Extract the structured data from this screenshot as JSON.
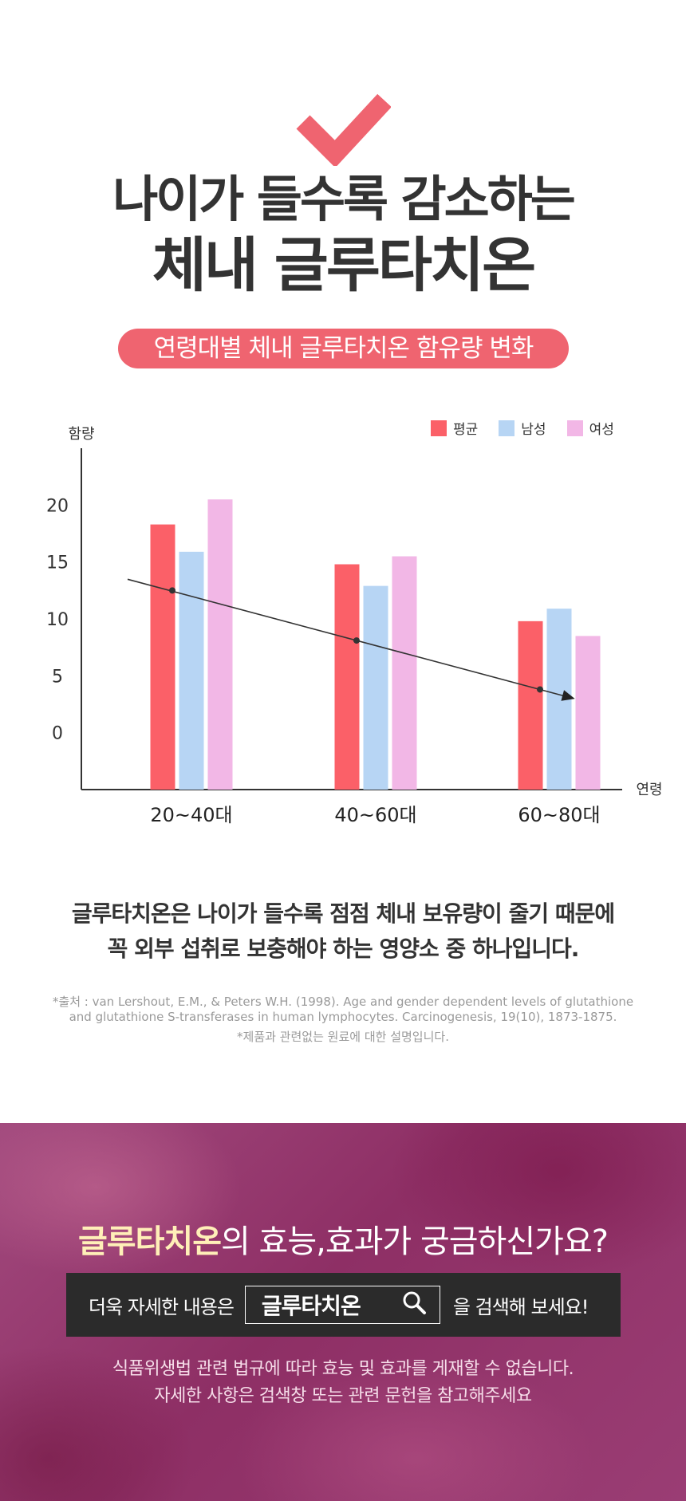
{
  "headline": {
    "line1": "나이가 들수록 감소하는",
    "line2": "체내 글루타치온"
  },
  "pill_label": "연령대별 체내 글루타치온 함유량 변화",
  "colors": {
    "accent": "#ef6470",
    "average": "#fb6068",
    "male": "#b7d5f4",
    "female": "#f2b7e6",
    "banner": "#8e2f65"
  },
  "icons": {
    "check": "checkmark-icon",
    "search": "search-icon"
  },
  "chart_data": {
    "type": "bar",
    "title": "",
    "xlabel": "연령",
    "ylabel": "함량",
    "categories": [
      "20~40대",
      "40~60대",
      "60~80대"
    ],
    "y_ticks": [
      0,
      5,
      10,
      15,
      20
    ],
    "ylim": [
      -5,
      25
    ],
    "grid": false,
    "legend_position": "top-right",
    "series": [
      {
        "name": "평균",
        "color": "#fb6068",
        "values": [
          18.3,
          14.8,
          9.8
        ]
      },
      {
        "name": "남성",
        "color": "#b7d5f4",
        "values": [
          15.9,
          12.9,
          10.9
        ]
      },
      {
        "name": "여성",
        "color": "#f2b7e6",
        "values": [
          20.5,
          15.5,
          8.5
        ]
      }
    ],
    "trend": {
      "points": [
        12.5,
        8.1,
        3.8
      ],
      "arrow": true
    }
  },
  "summary": {
    "line1": "글루타치온은 나이가 들수록 점점 체내 보유량이 줄기 때문에",
    "line2": "꼭 외부 섭취로 보충해야 하는 영양소 중 하나입니다."
  },
  "source": {
    "line1": "*출처 : van Lershout, E.M., & Peters W.H. (1998). Age and gender dependent levels of glutathione",
    "line2": "and glutathione S-transferases in human lymphocytes. Carcinogenesis, 19(10), 1873-1875.",
    "note": "*제품과 관련없는 원료에 대한 설명입니다."
  },
  "banner": {
    "title_em": "글루타치온",
    "title_rest": "의 효능,효과가 궁금하신가요?",
    "search_prefix": "더욱 자세한 내용은",
    "search_keyword": "글루타치온",
    "search_suffix": "을 검색해 보세요!",
    "disclaimer1": "식품위생법 관련 법규에 따라 효능 및 효과를 게재할 수 없습니다.",
    "disclaimer2": "자세한 사항은 검색창 또는 관련 문헌을 참고해주세요"
  }
}
